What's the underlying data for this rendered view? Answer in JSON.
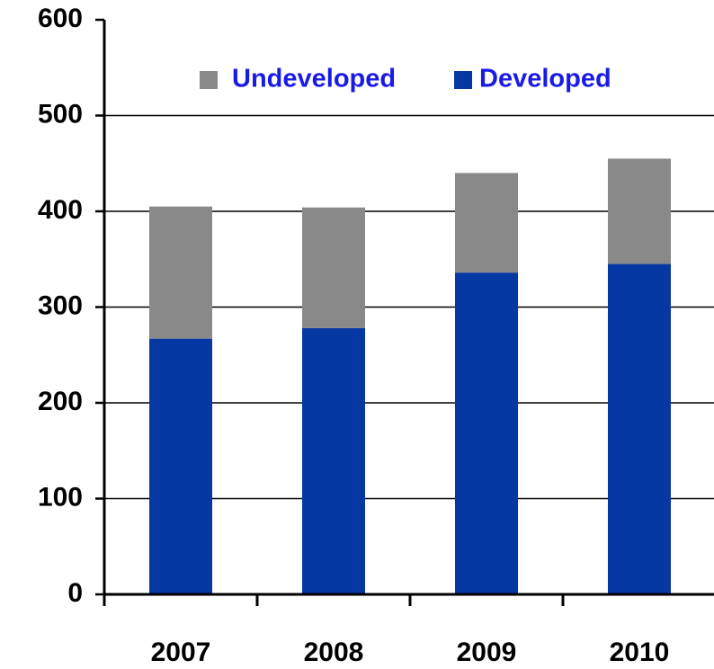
{
  "chart_data": {
    "type": "stacked_bar",
    "categories": [
      "2007",
      "2008",
      "2009",
      "2010"
    ],
    "series": [
      {
        "name": "Developed",
        "color": "#0638a4",
        "values": [
          267,
          278,
          336,
          345
        ]
      },
      {
        "name": "Undeveloped",
        "color": "#898989",
        "values": [
          138,
          126,
          104,
          110
        ]
      }
    ],
    "ylim": [
      0,
      600
    ],
    "yticks": [
      0,
      100,
      200,
      300,
      400,
      500,
      600
    ],
    "grid": true
  }
}
